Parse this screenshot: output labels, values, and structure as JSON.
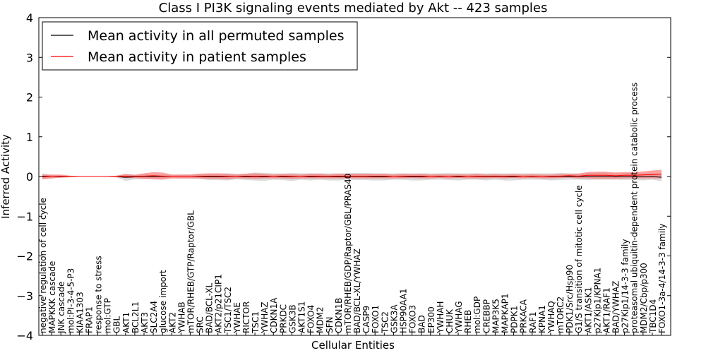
{
  "chart_data": {
    "type": "line",
    "title": "Class I PI3K signaling events mediated by Akt -- 423 samples",
    "xlabel": "Cellular Entities",
    "ylabel": "Inferred Activity",
    "ylim": [
      -4,
      4
    ],
    "yticks": [
      -4,
      -3,
      -2,
      -1,
      0,
      1,
      2,
      3,
      4
    ],
    "ytick_labels": [
      "−4",
      "−3",
      "−2",
      "−1",
      "0",
      "1",
      "2",
      "3",
      "4"
    ],
    "legend_position": "top-left",
    "categories": [
      "negative regulation of cell cycle",
      "MAPKKK cascade",
      "JNK cascade",
      "mol:PI-3-4-5-P3",
      "KIAA1303",
      "FRAP1",
      "response to stress",
      "mol:GTP",
      "GBL",
      "AKT1",
      "BCL2L1",
      "AKT3",
      "SLC2A4",
      "glucose import",
      "AKT2",
      "YWHAB",
      "mTOR/RHEB/GTP/Raptor/GBL",
      "SRC",
      "BAD/BCL-XL",
      "AKT2/p21CIP1",
      "TSC1/TSC2",
      "YWHAE",
      "RICTOR",
      "TSC1",
      "YWHAZ",
      "CDKN1A",
      "PRKDC",
      "GSK3B",
      "AKT1S1",
      "FOXO4",
      "MDM2",
      "SFN",
      "CDKN1B",
      "mTOR/RHEB/GDP/Raptor/GBL/PRAS40",
      "BAD/BCL-XL/YWHAZ",
      "CASP9",
      "FOXO1",
      "TSC2",
      "GSK3A",
      "HSP90AA1",
      "FOXO3",
      "BAD",
      "EP300",
      "YWHAH",
      "CHUK",
      "YWHAG",
      "RHEB",
      "mol:GDP",
      "CREBBP",
      "MAP3K5",
      "MAPKAP1",
      "PDPK1",
      "PRKACA",
      "RAF1",
      "KPNA1",
      "YWHAQ",
      "mTORC2",
      "PDK1/Src/Hsp90",
      "G1/S transition of mitotic cell cycle",
      "AKT1/ASK1",
      "p27Kip1/KPNA1",
      "AKT1/RAF1",
      "BAD/YWHAZ",
      "p27Kip1/14-3-3 family",
      "proteasomal ubiquitin-dependent protein catabolic process",
      "MDM2/Cbp/p300",
      "TBC1D4",
      "FOXO1-3a-4/14-3-3 family"
    ],
    "series": [
      {
        "name": "Mean activity in all permuted samples",
        "color": "#000000",
        "values": [
          0.01,
          0.0,
          0.0,
          0.0,
          0.0,
          0.0,
          0.0,
          0.0,
          0.0,
          -0.02,
          -0.01,
          0.0,
          0.0,
          0.0,
          0.0,
          0.0,
          0.0,
          0.0,
          -0.01,
          -0.01,
          -0.01,
          0.0,
          -0.01,
          0.0,
          -0.01,
          0.0,
          -0.01,
          -0.01,
          0.0,
          -0.01,
          0.0,
          -0.01,
          -0.01,
          0.0,
          0.0,
          0.0,
          -0.01,
          -0.01,
          0.0,
          0.0,
          -0.01,
          -0.01,
          0.0,
          0.0,
          0.0,
          -0.01,
          0.0,
          0.0,
          -0.01,
          0.0,
          -0.01,
          -0.01,
          0.0,
          0.0,
          0.0,
          -0.01,
          0.0,
          0.0,
          0.0,
          0.0,
          0.01,
          0.01,
          0.0,
          0.0,
          0.0,
          -0.01,
          0.0,
          -0.02
        ],
        "band": [
          0.07,
          0.04,
          0.02,
          0.02,
          0.01,
          0.01,
          0.01,
          0.01,
          0.02,
          0.09,
          0.06,
          0.06,
          0.05,
          0.05,
          0.04,
          0.05,
          0.05,
          0.06,
          0.08,
          0.08,
          0.09,
          0.07,
          0.08,
          0.1,
          0.1,
          0.08,
          0.08,
          0.1,
          0.08,
          0.09,
          0.08,
          0.09,
          0.09,
          0.08,
          0.09,
          0.09,
          0.09,
          0.09,
          0.08,
          0.08,
          0.09,
          0.09,
          0.08,
          0.08,
          0.09,
          0.09,
          0.08,
          0.08,
          0.09,
          0.08,
          0.09,
          0.09,
          0.08,
          0.08,
          0.08,
          0.09,
          0.09,
          0.08,
          0.08,
          0.09,
          0.09,
          0.09,
          0.08,
          0.09,
          0.08,
          0.09,
          0.08,
          0.1
        ]
      },
      {
        "name": "Mean activity in patient samples",
        "color": "#ff0000",
        "values": [
          -0.01,
          0.0,
          0.01,
          0.0,
          0.0,
          0.0,
          0.0,
          0.0,
          0.0,
          0.01,
          0.0,
          0.01,
          0.02,
          0.01,
          0.0,
          0.0,
          0.0,
          0.01,
          0.01,
          0.01,
          0.0,
          0.0,
          0.01,
          0.01,
          0.01,
          0.0,
          0.01,
          0.0,
          0.0,
          0.01,
          0.01,
          0.0,
          0.01,
          0.01,
          0.01,
          0.01,
          0.01,
          0.01,
          0.0,
          0.01,
          0.01,
          0.01,
          0.0,
          0.01,
          0.0,
          0.01,
          0.0,
          0.01,
          0.0,
          0.01,
          0.0,
          0.01,
          0.0,
          0.01,
          0.0,
          0.0,
          0.01,
          0.02,
          0.01,
          0.03,
          0.03,
          0.03,
          0.02,
          0.03,
          0.03,
          0.04,
          0.05,
          0.06
        ],
        "band": [
          0.06,
          0.05,
          0.04,
          0.02,
          0.01,
          0.01,
          0.01,
          0.01,
          0.02,
          0.05,
          0.04,
          0.07,
          0.09,
          0.09,
          0.05,
          0.05,
          0.05,
          0.06,
          0.07,
          0.07,
          0.07,
          0.05,
          0.06,
          0.07,
          0.06,
          0.05,
          0.06,
          0.06,
          0.05,
          0.06,
          0.06,
          0.05,
          0.06,
          0.06,
          0.06,
          0.06,
          0.06,
          0.06,
          0.05,
          0.06,
          0.05,
          0.06,
          0.05,
          0.05,
          0.05,
          0.05,
          0.05,
          0.06,
          0.05,
          0.05,
          0.05,
          0.05,
          0.05,
          0.05,
          0.05,
          0.05,
          0.05,
          0.05,
          0.06,
          0.08,
          0.09,
          0.09,
          0.08,
          0.08,
          0.08,
          0.09,
          0.1,
          0.11
        ]
      }
    ]
  }
}
